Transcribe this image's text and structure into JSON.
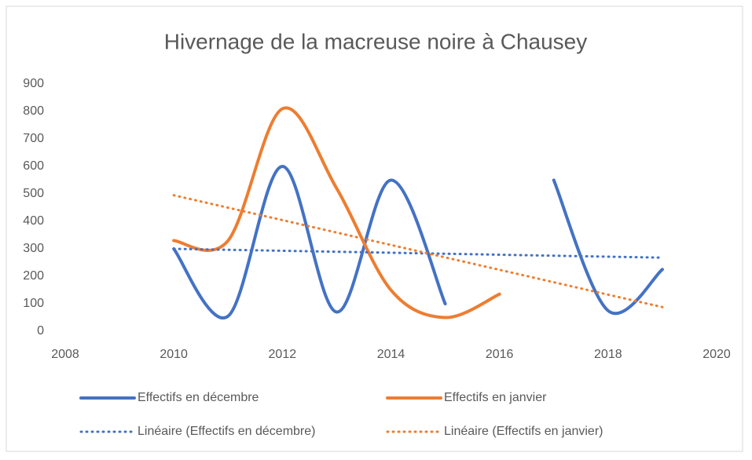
{
  "chart_data": {
    "type": "line",
    "title": "Hivernage de la macreuse noire à Chausey",
    "smooth": true,
    "series": [
      {
        "name": "Effectifs en décembre",
        "color": "#4472c4",
        "dash": false,
        "x": [
          2010,
          2011,
          2012,
          2013,
          2014,
          2015,
          2016,
          2017,
          2018,
          2019
        ],
        "values": [
          300,
          55,
          600,
          70,
          550,
          100,
          null,
          550,
          75,
          225
        ]
      },
      {
        "name": "Effectifs en janvier",
        "color": "#ed7d31",
        "dash": false,
        "x": [
          2010,
          2011,
          2012,
          2013,
          2014,
          2015,
          2016
        ],
        "values": [
          330,
          330,
          810,
          520,
          150,
          50,
          135
        ]
      },
      {
        "name": "Linéaire (Effectifs en décembre)",
        "color": "#4472c4",
        "dash": true,
        "x": [
          2010,
          2019
        ],
        "values": [
          300,
          268
        ]
      },
      {
        "name": "Linéaire (Effectifs en janvier)",
        "color": "#ed7d31",
        "dash": true,
        "x": [
          2010,
          2019
        ],
        "values": [
          495,
          88
        ]
      }
    ],
    "xlim": [
      2008,
      2020
    ],
    "xticks": [
      2008,
      2010,
      2012,
      2014,
      2016,
      2018,
      2020
    ],
    "ylim": [
      0,
      900
    ],
    "yticks": [
      0,
      100,
      200,
      300,
      400,
      500,
      600,
      700,
      800,
      900
    ],
    "grid": false,
    "legend": "bottom"
  }
}
